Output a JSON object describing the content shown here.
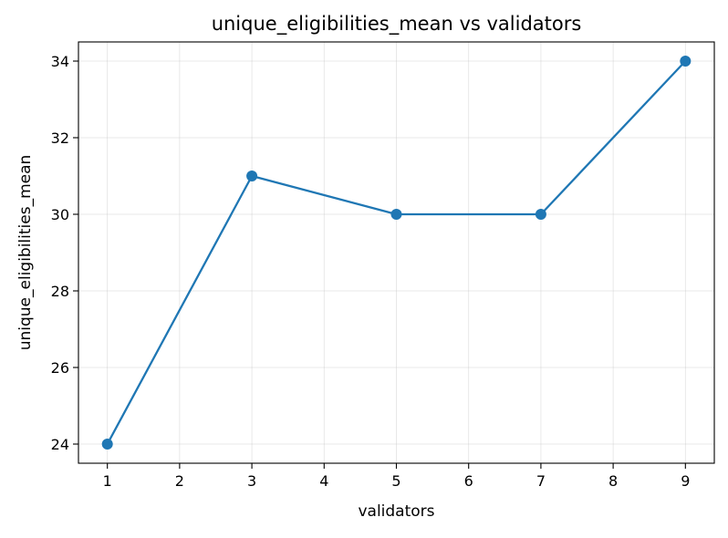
{
  "chart_data": {
    "type": "line",
    "title": "unique_eligibilities_mean vs validators",
    "xlabel": "validators",
    "ylabel": "unique_eligibilities_mean",
    "x": [
      1,
      3,
      5,
      7,
      9
    ],
    "series": [
      {
        "values": [
          24,
          31,
          30,
          30,
          34
        ],
        "color": "#1f77b4",
        "marker": "circle"
      }
    ],
    "xlim": [
      0.6,
      9.4
    ],
    "ylim": [
      23.5,
      34.5
    ],
    "xticks": [
      1,
      2,
      3,
      4,
      5,
      6,
      7,
      8,
      9
    ],
    "yticks": [
      24,
      26,
      28,
      30,
      32,
      34
    ],
    "grid": true
  }
}
